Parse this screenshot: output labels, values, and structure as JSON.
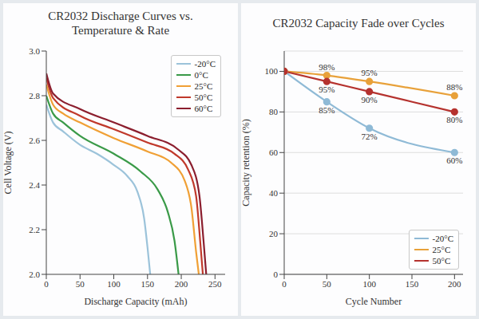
{
  "chart_data": [
    {
      "type": "line",
      "title": "CR2032 Discharge Curves vs. Temperature & Rate",
      "x_label": "Discharge Capacity (mAh)",
      "y_label": "Cell Voltage (V)",
      "xlim": [
        0,
        265
      ],
      "xticks": [
        0,
        50,
        100,
        150,
        200,
        250
      ],
      "ylim": [
        2,
        3
      ],
      "yticks": [
        {
          "value": 2,
          "label": "2.0"
        },
        2.2,
        2.4,
        2.6,
        2.8,
        {
          "value": 3,
          "label": "3.0"
        }
      ],
      "grid": false,
      "legend": "upper right",
      "series": [
        {
          "name": "-20°C",
          "color": "#9cc3da",
          "x": [
            0,
            10,
            25,
            50,
            75,
            100,
            120,
            135,
            145,
            150,
            154
          ],
          "values": [
            2.76,
            2.68,
            2.64,
            2.58,
            2.54,
            2.49,
            2.44,
            2.37,
            2.25,
            2.12,
            2.0
          ]
        },
        {
          "name": "0°C",
          "color": "#3a9a48",
          "x": [
            0,
            10,
            25,
            50,
            100,
            140,
            165,
            180,
            190,
            196
          ],
          "values": [
            2.8,
            2.72,
            2.68,
            2.62,
            2.54,
            2.46,
            2.38,
            2.28,
            2.15,
            2.0
          ]
        },
        {
          "name": "25°C",
          "color": "#f0a035",
          "x": [
            0,
            10,
            25,
            50,
            100,
            150,
            185,
            205,
            215,
            222,
            226
          ],
          "values": [
            2.85,
            2.76,
            2.72,
            2.68,
            2.61,
            2.55,
            2.5,
            2.42,
            2.3,
            2.1,
            2.0
          ]
        },
        {
          "name": "50°C",
          "color": "#c0392b",
          "x": [
            0,
            10,
            50,
            100,
            150,
            190,
            210,
            222,
            228,
            232
          ],
          "values": [
            2.88,
            2.79,
            2.71,
            2.65,
            2.59,
            2.54,
            2.47,
            2.35,
            2.15,
            2.0
          ]
        },
        {
          "name": "60°C",
          "color": "#8b1e2e",
          "x": [
            0,
            10,
            50,
            100,
            150,
            195,
            215,
            227,
            233,
            237
          ],
          "values": [
            2.9,
            2.81,
            2.74,
            2.68,
            2.62,
            2.56,
            2.49,
            2.35,
            2.15,
            2.0
          ]
        }
      ]
    },
    {
      "type": "line",
      "title": "CR2032 Capacity Fade over Cycles",
      "x_label": "Cycle Number",
      "y_label": "Capacity retention (%)",
      "x": [
        0,
        50,
        100,
        200
      ],
      "xlim": [
        0,
        210
      ],
      "xticks": [
        0,
        50,
        100,
        150,
        200
      ],
      "ylim": [
        0,
        110
      ],
      "yticks": [
        0,
        20,
        40,
        60,
        80,
        100
      ],
      "grid": true,
      "legend": "lower right",
      "marker": "o",
      "data_labels": true,
      "series": [
        {
          "name": "-20°C",
          "color": "#8fbad6",
          "values": [
            100,
            85,
            72,
            60
          ],
          "value_labels": [
            null,
            "85%",
            "72%",
            "60%"
          ]
        },
        {
          "name": "25°C",
          "color": "#e8a13a",
          "values": [
            100,
            98,
            95,
            88
          ],
          "value_labels": [
            null,
            "98%",
            "95%",
            "88%"
          ]
        },
        {
          "name": "50°C",
          "color": "#b5322e",
          "values": [
            100,
            95,
            90,
            80
          ],
          "value_labels": [
            null,
            "95%",
            "90%",
            "80%"
          ]
        }
      ]
    }
  ]
}
